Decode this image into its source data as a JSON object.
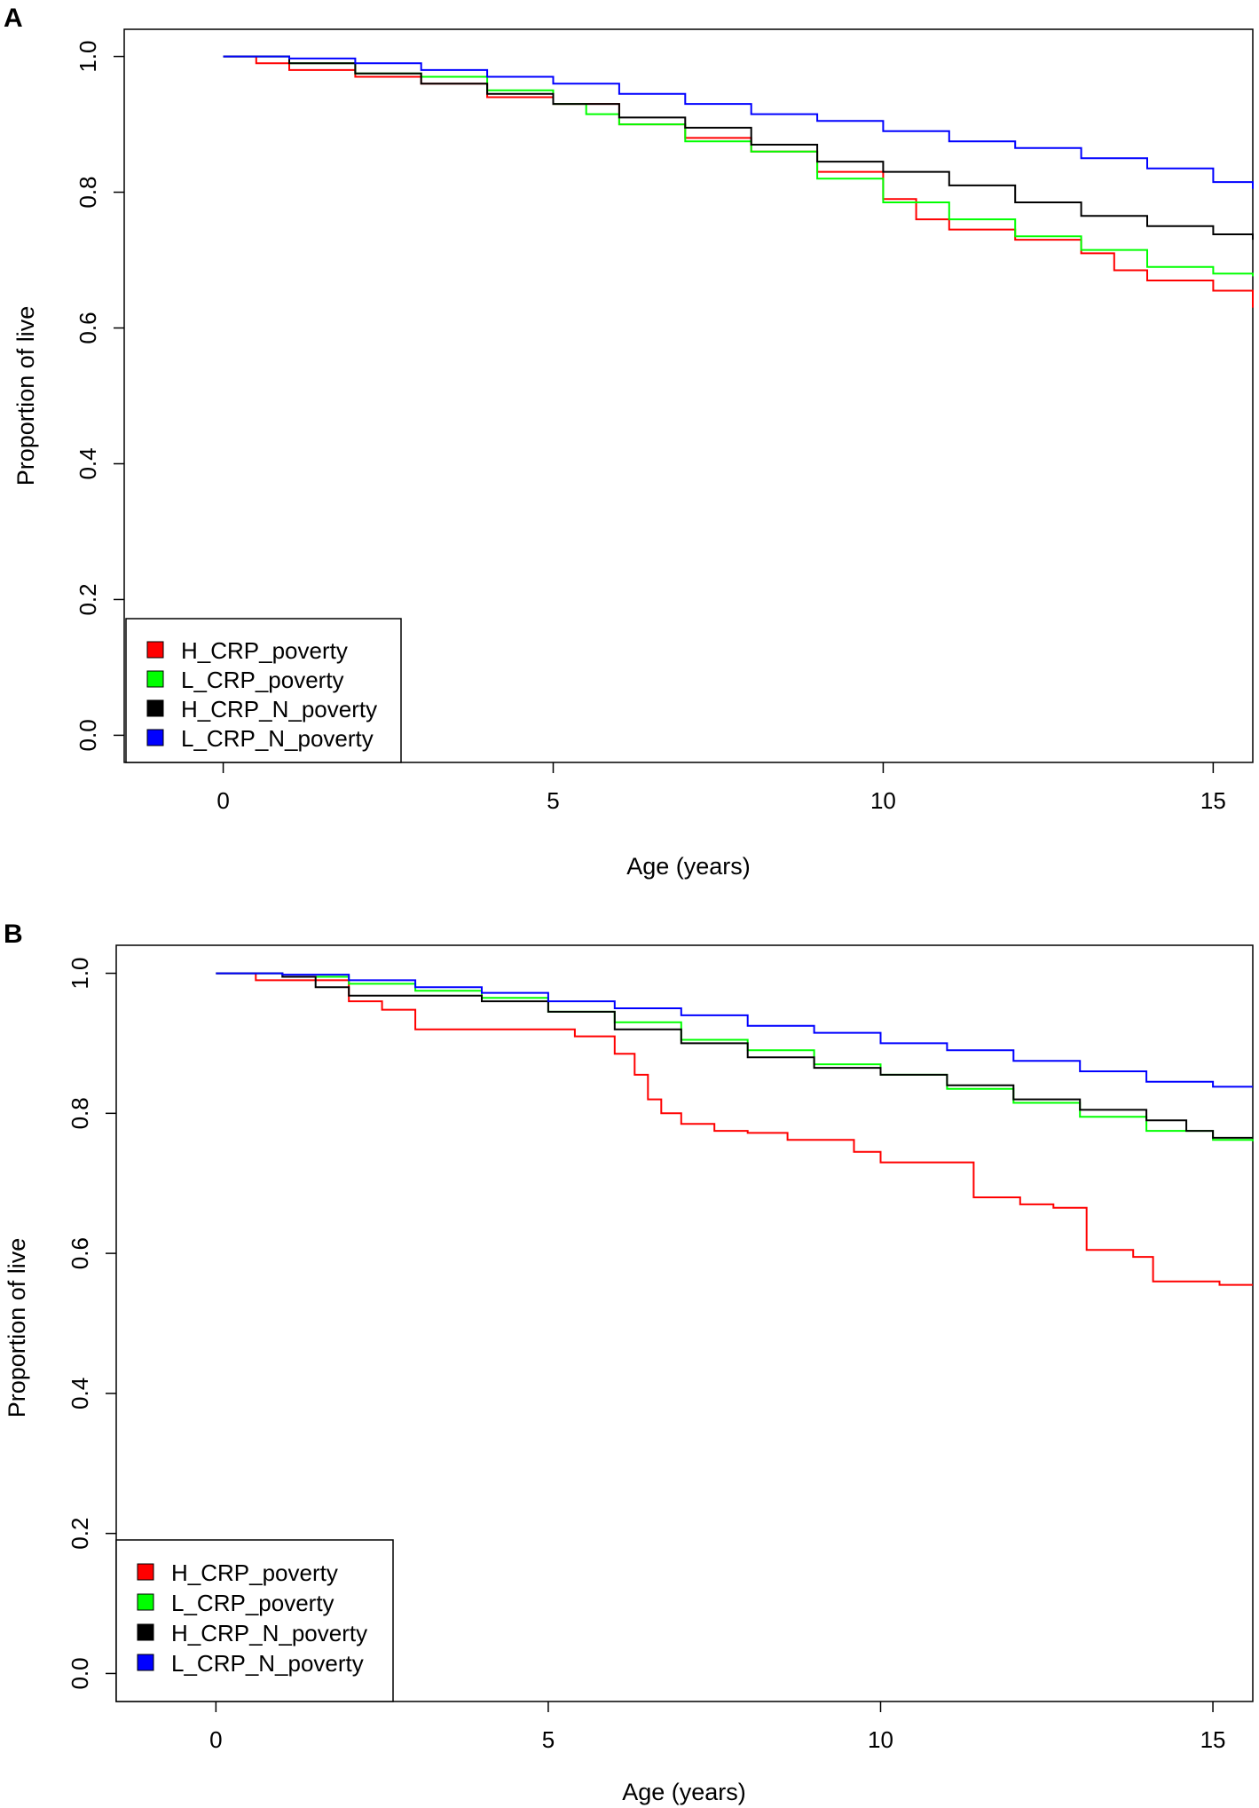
{
  "chart_data": [
    {
      "panel": "A",
      "type": "line",
      "step": true,
      "xlabel": "Age (years)",
      "ylabel": "Proportion of live",
      "xlim": [
        -1.5,
        15.6
      ],
      "ylim": [
        -0.04,
        1.04
      ],
      "xticks": [
        0,
        5,
        10,
        15
      ],
      "yticks": [
        "0.0",
        "0.2",
        "0.4",
        "0.6",
        "0.8",
        "1.0"
      ],
      "legend_position": "bottom-left",
      "series": [
        {
          "name": "H_CRP_poverty",
          "color": "#ff0000",
          "x": [
            0,
            0.5,
            1,
            2,
            3,
            4,
            5,
            6,
            7,
            8,
            9,
            10,
            10.5,
            11,
            12,
            13,
            13.5,
            14,
            15,
            15.6
          ],
          "y": [
            1.0,
            0.99,
            0.98,
            0.97,
            0.96,
            0.94,
            0.93,
            0.9,
            0.88,
            0.86,
            0.83,
            0.79,
            0.76,
            0.745,
            0.73,
            0.71,
            0.685,
            0.67,
            0.655,
            0.63
          ]
        },
        {
          "name": "L_CRP_poverty",
          "color": "#00ff00",
          "x": [
            0,
            1,
            2,
            3,
            4,
            5,
            5.5,
            6,
            7,
            8,
            9,
            10,
            11,
            12,
            13,
            14,
            15,
            15.6
          ],
          "y": [
            1.0,
            0.99,
            0.975,
            0.97,
            0.95,
            0.93,
            0.915,
            0.9,
            0.875,
            0.86,
            0.82,
            0.785,
            0.76,
            0.735,
            0.715,
            0.69,
            0.68,
            0.676
          ]
        },
        {
          "name": "H_CRP_N_poverty",
          "color": "#000000",
          "x": [
            0,
            1,
            2,
            3,
            4,
            5,
            6,
            7,
            8,
            9,
            10,
            11,
            12,
            13,
            14,
            15,
            15.6
          ],
          "y": [
            1.0,
            0.99,
            0.975,
            0.96,
            0.945,
            0.93,
            0.91,
            0.895,
            0.87,
            0.845,
            0.83,
            0.81,
            0.785,
            0.765,
            0.75,
            0.738,
            0.73
          ]
        },
        {
          "name": "L_CRP_N_poverty",
          "color": "#0000ff",
          "x": [
            0,
            1,
            2,
            3,
            4,
            5,
            6,
            7,
            8,
            9,
            10,
            11,
            12,
            13,
            14,
            15,
            15.6
          ],
          "y": [
            1.0,
            0.997,
            0.99,
            0.98,
            0.97,
            0.96,
            0.945,
            0.93,
            0.915,
            0.905,
            0.89,
            0.875,
            0.865,
            0.85,
            0.835,
            0.815,
            0.805
          ]
        }
      ]
    },
    {
      "panel": "B",
      "type": "line",
      "step": true,
      "xlabel": "Age (years)",
      "ylabel": "Proportion of live",
      "xlim": [
        -1.5,
        15.6
      ],
      "ylim": [
        -0.04,
        1.04
      ],
      "xticks": [
        0,
        5,
        10,
        15
      ],
      "yticks": [
        "0.0",
        "0.2",
        "0.4",
        "0.6",
        "0.8",
        "1.0"
      ],
      "legend_position": "bottom-left",
      "series": [
        {
          "name": "H_CRP_poverty",
          "color": "#ff0000",
          "x": [
            0,
            0.6,
            2.0,
            2.5,
            3.0,
            5.4,
            6.0,
            6.3,
            6.5,
            6.7,
            7.0,
            7.5,
            8.0,
            8.6,
            9.6,
            10.0,
            11.4,
            12.1,
            12.6,
            13.1,
            13.8,
            14.1,
            15.1,
            15.6
          ],
          "y": [
            1.0,
            0.99,
            0.96,
            0.948,
            0.92,
            0.91,
            0.885,
            0.855,
            0.82,
            0.8,
            0.785,
            0.775,
            0.772,
            0.762,
            0.745,
            0.73,
            0.68,
            0.67,
            0.665,
            0.605,
            0.595,
            0.56,
            0.555,
            0.555
          ]
        },
        {
          "name": "L_CRP_poverty",
          "color": "#00ff00",
          "x": [
            0,
            1,
            2,
            3,
            4,
            5,
            6,
            7,
            8,
            9,
            10,
            11,
            12,
            13,
            14,
            15,
            15.6
          ],
          "y": [
            1.0,
            0.995,
            0.985,
            0.975,
            0.965,
            0.945,
            0.93,
            0.905,
            0.89,
            0.87,
            0.855,
            0.835,
            0.815,
            0.795,
            0.775,
            0.762,
            0.76
          ]
        },
        {
          "name": "H_CRP_N_poverty",
          "color": "#000000",
          "x": [
            0,
            1,
            1.5,
            2,
            4,
            5,
            6,
            7,
            8,
            9,
            10,
            11,
            12,
            13,
            14,
            14.6,
            15,
            15.6
          ],
          "y": [
            1.0,
            0.995,
            0.98,
            0.968,
            0.96,
            0.945,
            0.92,
            0.9,
            0.88,
            0.865,
            0.855,
            0.84,
            0.82,
            0.805,
            0.79,
            0.775,
            0.765,
            0.765
          ]
        },
        {
          "name": "L_CRP_N_poverty",
          "color": "#0000ff",
          "x": [
            0,
            1,
            2,
            3,
            4,
            5,
            6,
            7,
            8,
            9,
            10,
            11,
            12,
            13,
            14,
            15,
            15.6
          ],
          "y": [
            1.0,
            0.998,
            0.99,
            0.98,
            0.972,
            0.96,
            0.95,
            0.94,
            0.925,
            0.915,
            0.9,
            0.89,
            0.875,
            0.86,
            0.845,
            0.838,
            0.838
          ]
        }
      ]
    }
  ]
}
